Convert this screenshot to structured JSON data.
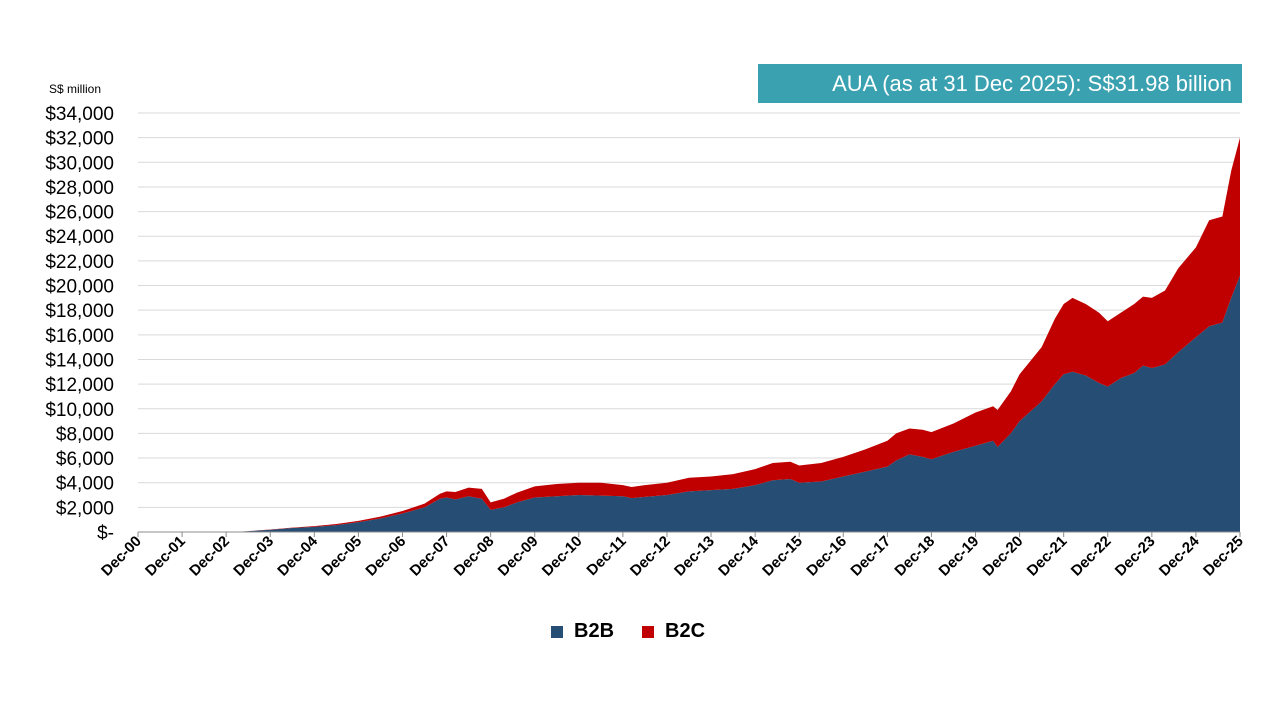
{
  "banner": {
    "text": "AUA (as at 31 Dec 2025): S$31.98 billion"
  },
  "chart_data": {
    "type": "area",
    "stacked": true,
    "title": "AUA (as at 31 Dec 2025): S$31.98 billion",
    "ylabel": "S$ million",
    "xlabel": "",
    "ylim": [
      0,
      34000
    ],
    "xlim": [
      0,
      25
    ],
    "grid": true,
    "legend_position": "bottom-center",
    "y_ticks": [
      0,
      2000,
      4000,
      6000,
      8000,
      10000,
      12000,
      14000,
      16000,
      18000,
      20000,
      22000,
      24000,
      26000,
      28000,
      30000,
      32000,
      34000
    ],
    "y_tick_labels": [
      "$-",
      "$2,000",
      "$4,000",
      "$6,000",
      "$8,000",
      "$10,000",
      "$12,000",
      "$14,000",
      "$16,000",
      "$18,000",
      "$20,000",
      "$22,000",
      "$24,000",
      "$26,000",
      "$28,000",
      "$30,000",
      "$32,000",
      "$34,000"
    ],
    "x_tick_labels": [
      "Dec-00",
      "Dec-01",
      "Dec-02",
      "Dec-03",
      "Dec-04",
      "Dec-05",
      "Dec-06",
      "Dec-07",
      "Dec-08",
      "Dec-09",
      "Dec-10",
      "Dec-11",
      "Dec-12",
      "Dec-13",
      "Dec-14",
      "Dec-15",
      "Dec-16",
      "Dec-17",
      "Dec-18",
      "Dec-19",
      "Dec-20",
      "Dec-21",
      "Dec-22",
      "Dec-23",
      "Dec-24",
      "Dec-25"
    ],
    "x": [
      0,
      1,
      2,
      2.2,
      3,
      3.5,
      4,
      4.5,
      5,
      5.5,
      6,
      6.5,
      6.85,
      7,
      7.2,
      7.5,
      7.8,
      8,
      8.3,
      8.6,
      9,
      9.5,
      10,
      10.5,
      11,
      11.2,
      11.5,
      12,
      12.5,
      13,
      13.5,
      14,
      14.4,
      14.8,
      15,
      15.5,
      16,
      16.5,
      17,
      17.2,
      17.5,
      17.8,
      18,
      18.5,
      19,
      19.4,
      19.5,
      19.8,
      20,
      20.5,
      20.8,
      21,
      21.2,
      21.5,
      21.8,
      22,
      22.3,
      22.6,
      22.8,
      23,
      23.3,
      23.6,
      24,
      24.3,
      24.6,
      24.8,
      25
    ],
    "series": [
      {
        "name": "B2B",
        "color": "#264d73",
        "values": [
          0,
          0,
          0,
          0,
          180,
          320,
          420,
          560,
          800,
          1100,
          1500,
          2000,
          2700,
          2800,
          2650,
          2900,
          2700,
          1800,
          2000,
          2400,
          2800,
          2900,
          3000,
          2950,
          2900,
          2750,
          2850,
          3000,
          3300,
          3400,
          3500,
          3800,
          4200,
          4300,
          4000,
          4100,
          4500,
          4900,
          5300,
          5800,
          6300,
          6100,
          5900,
          6500,
          7000,
          7400,
          6900,
          8000,
          9000,
          10600,
          12000,
          12800,
          13000,
          12700,
          12100,
          11800,
          12500,
          12900,
          13500,
          13300,
          13600,
          14600,
          15800,
          16700,
          17000,
          19000,
          20800
        ]
      },
      {
        "name": "B2C",
        "color": "#c00000",
        "values": [
          0,
          0,
          0,
          0,
          20,
          40,
          60,
          90,
          100,
          150,
          200,
          300,
          400,
          500,
          600,
          700,
          800,
          600,
          700,
          800,
          900,
          1000,
          1000,
          1050,
          900,
          900,
          950,
          1000,
          1100,
          1100,
          1200,
          1300,
          1400,
          1400,
          1400,
          1500,
          1600,
          1800,
          2100,
          2200,
          2100,
          2200,
          2200,
          2300,
          2700,
          2800,
          3000,
          3400,
          3800,
          4400,
          5300,
          5700,
          6000,
          5800,
          5700,
          5300,
          5300,
          5600,
          5600,
          5700,
          6000,
          6800,
          7300,
          8600,
          8600,
          10300,
          11200
        ]
      }
    ]
  },
  "legend": {
    "items": [
      "B2B",
      "B2C"
    ]
  }
}
